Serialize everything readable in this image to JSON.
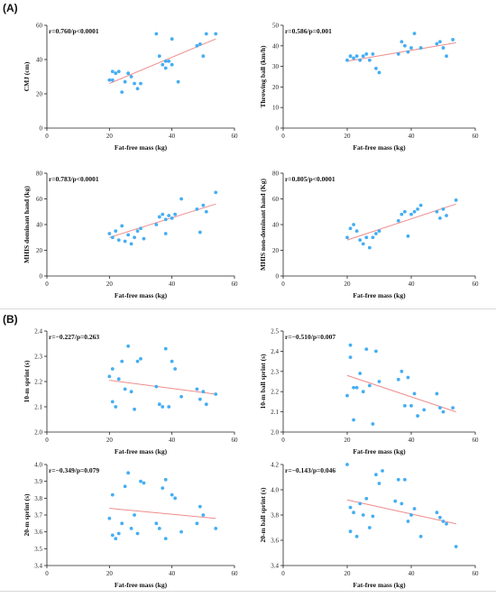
{
  "sections": [
    {
      "label": "(A)"
    },
    {
      "label": "(B)"
    }
  ],
  "colors": {
    "points": "#45aef2",
    "fit_line": "#ee8c8c",
    "axes": "#222222"
  },
  "chart_data": [
    {
      "type": "scatter",
      "title": "",
      "stat": "r=0.760/p<0.0001",
      "xlabel": "Fat-free mass (kg)",
      "ylabel": "CMJ (cm)",
      "xlim": [
        0,
        60
      ],
      "ylim": [
        0,
        60
      ],
      "xticks": [
        "0",
        "20",
        "40",
        "60"
      ],
      "yticks": [
        "0",
        "20",
        "40",
        "60"
      ],
      "fit": [
        [
          20,
          26
        ],
        [
          54,
          52
        ]
      ],
      "points": [
        [
          20,
          28
        ],
        [
          21,
          33
        ],
        [
          21,
          28
        ],
        [
          22,
          32
        ],
        [
          23,
          33
        ],
        [
          24,
          21
        ],
        [
          25,
          27
        ],
        [
          26,
          32
        ],
        [
          27,
          30
        ],
        [
          28,
          26
        ],
        [
          29,
          23
        ],
        [
          30,
          26
        ],
        [
          35,
          55
        ],
        [
          36,
          42
        ],
        [
          37,
          37
        ],
        [
          38,
          35
        ],
        [
          38,
          39
        ],
        [
          39,
          39
        ],
        [
          40,
          37
        ],
        [
          40,
          52
        ],
        [
          42,
          27
        ],
        [
          48,
          48
        ],
        [
          49,
          49
        ],
        [
          50,
          42
        ],
        [
          51,
          55
        ],
        [
          54,
          55
        ]
      ]
    },
    {
      "type": "scatter",
      "title": "",
      "stat": "r=0.586/p=0.001",
      "xlabel": "Fat-free mass (kg)",
      "ylabel": "Throwing ball (km/h)",
      "xlim": [
        0,
        60
      ],
      "ylim": [
        0,
        50
      ],
      "xticks": [
        "0",
        "20",
        "40",
        "60"
      ],
      "yticks": [
        "0",
        "10",
        "20",
        "30",
        "40",
        "50"
      ],
      "fit": [
        [
          20,
          32.5
        ],
        [
          54,
          41.5
        ]
      ],
      "points": [
        [
          20,
          33
        ],
        [
          21,
          35
        ],
        [
          22,
          34
        ],
        [
          23,
          35
        ],
        [
          24,
          33
        ],
        [
          25,
          35
        ],
        [
          26,
          36
        ],
        [
          27,
          33
        ],
        [
          28,
          36
        ],
        [
          29,
          29
        ],
        [
          30,
          27
        ],
        [
          36,
          36
        ],
        [
          37,
          42
        ],
        [
          38,
          40
        ],
        [
          39,
          37
        ],
        [
          40,
          39
        ],
        [
          41,
          46
        ],
        [
          43,
          39
        ],
        [
          48,
          41
        ],
        [
          49,
          42
        ],
        [
          50,
          39
        ],
        [
          51,
          35
        ],
        [
          53,
          43
        ]
      ]
    },
    {
      "type": "scatter",
      "title": "",
      "stat": "r=0.783/p<0.0001",
      "xlabel": "Fat-free mass (kg)",
      "ylabel": "MHIS dominant hand (kg)",
      "xlim": [
        0,
        60
      ],
      "ylim": [
        0,
        80
      ],
      "xticks": [
        "0",
        "20",
        "40",
        "60"
      ],
      "yticks": [
        "0",
        "20",
        "40",
        "60",
        "80"
      ],
      "fit": [
        [
          20,
          30
        ],
        [
          54,
          56
        ]
      ],
      "points": [
        [
          20,
          33
        ],
        [
          21,
          30
        ],
        [
          22,
          35
        ],
        [
          23,
          28
        ],
        [
          24,
          39
        ],
        [
          25,
          27
        ],
        [
          26,
          32
        ],
        [
          27,
          25
        ],
        [
          28,
          30
        ],
        [
          29,
          35
        ],
        [
          30,
          37
        ],
        [
          31,
          29
        ],
        [
          35,
          40
        ],
        [
          36,
          46
        ],
        [
          37,
          48
        ],
        [
          38,
          33
        ],
        [
          38,
          44
        ],
        [
          39,
          47
        ],
        [
          40,
          45
        ],
        [
          41,
          48
        ],
        [
          43,
          60
        ],
        [
          48,
          52
        ],
        [
          49,
          34
        ],
        [
          50,
          55
        ],
        [
          51,
          50
        ],
        [
          54,
          65
        ]
      ]
    },
    {
      "type": "scatter",
      "title": "",
      "stat": "r=0.805/p<0.0001",
      "xlabel": "Fat-free mass (kg)",
      "ylabel": "MHIS non-dominant hand (Kg)",
      "xlim": [
        0,
        60
      ],
      "ylim": [
        0,
        80
      ],
      "xticks": [
        "0",
        "20",
        "40",
        "60"
      ],
      "yticks": [
        "0",
        "20",
        "40",
        "60",
        "80"
      ],
      "fit": [
        [
          20,
          28
        ],
        [
          54,
          56
        ]
      ],
      "points": [
        [
          20,
          30
        ],
        [
          21,
          37
        ],
        [
          22,
          40
        ],
        [
          23,
          35
        ],
        [
          24,
          28
        ],
        [
          25,
          25
        ],
        [
          26,
          30
        ],
        [
          27,
          22
        ],
        [
          28,
          30
        ],
        [
          29,
          33
        ],
        [
          30,
          35
        ],
        [
          36,
          43
        ],
        [
          37,
          48
        ],
        [
          38,
          50
        ],
        [
          39,
          31
        ],
        [
          40,
          48
        ],
        [
          41,
          50
        ],
        [
          42,
          52
        ],
        [
          43,
          55
        ],
        [
          48,
          50
        ],
        [
          49,
          45
        ],
        [
          50,
          52
        ],
        [
          51,
          47
        ],
        [
          54,
          59
        ]
      ]
    },
    {
      "type": "scatter",
      "title": "",
      "stat": "r=−0.227/p=0.263",
      "xlabel": "Fat-free mass (kg)",
      "ylabel": "10-m sprint (s)",
      "xlim": [
        0,
        60
      ],
      "ylim": [
        2.0,
        2.4
      ],
      "xticks": [
        "0",
        "20",
        "40",
        "60"
      ],
      "yticks": [
        "2.0",
        "2.1",
        "2.2",
        "2.3",
        "2.4"
      ],
      "fit": [
        [
          20,
          2.205
        ],
        [
          54,
          2.15
        ]
      ],
      "points": [
        [
          20,
          2.22
        ],
        [
          21,
          2.25
        ],
        [
          21,
          2.12
        ],
        [
          22,
          2.1
        ],
        [
          23,
          2.21
        ],
        [
          24,
          2.28
        ],
        [
          25,
          2.17
        ],
        [
          26,
          2.34
        ],
        [
          27,
          2.16
        ],
        [
          28,
          2.09
        ],
        [
          29,
          2.28
        ],
        [
          30,
          2.29
        ],
        [
          35,
          2.18
        ],
        [
          36,
          2.11
        ],
        [
          37,
          2.1
        ],
        [
          38,
          2.33
        ],
        [
          39,
          2.1
        ],
        [
          40,
          2.28
        ],
        [
          41,
          2.25
        ],
        [
          43,
          2.14
        ],
        [
          48,
          2.17
        ],
        [
          49,
          2.13
        ],
        [
          50,
          2.16
        ],
        [
          51,
          2.11
        ],
        [
          54,
          2.15
        ]
      ]
    },
    {
      "type": "scatter",
      "title": "",
      "stat": "r=−0.510/p=0.007",
      "xlabel": "Fat-free mass (kg)",
      "ylabel": "10-m ball sprint (s)",
      "xlim": [
        0,
        60
      ],
      "ylim": [
        2.0,
        2.5
      ],
      "xticks": [
        "0",
        "20",
        "40",
        "60"
      ],
      "yticks": [
        "2.0",
        "2.1",
        "2.2",
        "2.3",
        "2.4",
        "2.5"
      ],
      "fit": [
        [
          20,
          2.28
        ],
        [
          54,
          2.1
        ]
      ],
      "points": [
        [
          20,
          2.18
        ],
        [
          21,
          2.43
        ],
        [
          21,
          2.37
        ],
        [
          22,
          2.22
        ],
        [
          22,
          2.06
        ],
        [
          23,
          2.22
        ],
        [
          24,
          2.29
        ],
        [
          25,
          2.2
        ],
        [
          26,
          2.41
        ],
        [
          27,
          2.23
        ],
        [
          28,
          2.04
        ],
        [
          29,
          2.4
        ],
        [
          30,
          2.25
        ],
        [
          36,
          2.26
        ],
        [
          37,
          2.3
        ],
        [
          38,
          2.13
        ],
        [
          39,
          2.27
        ],
        [
          40,
          2.13
        ],
        [
          41,
          2.19
        ],
        [
          42,
          2.08
        ],
        [
          44,
          2.11
        ],
        [
          48,
          2.19
        ],
        [
          49,
          2.12
        ],
        [
          50,
          2.1
        ],
        [
          53,
          2.12
        ]
      ]
    },
    {
      "type": "scatter",
      "title": "",
      "stat": "r=−0.349/p=0.079",
      "xlabel": "Fat-free mass (kg)",
      "ylabel": "20-m sprint (s)",
      "xlim": [
        0,
        60
      ],
      "ylim": [
        3.4,
        4.0
      ],
      "xticks": [
        "0",
        "20",
        "40",
        "60"
      ],
      "yticks": [
        "3.4",
        "3.5",
        "3.6",
        "3.7",
        "3.8",
        "3.9",
        "4.0"
      ],
      "fit": [
        [
          20,
          3.74
        ],
        [
          54,
          3.68
        ]
      ],
      "points": [
        [
          20,
          3.68
        ],
        [
          21,
          3.82
        ],
        [
          21,
          3.58
        ],
        [
          22,
          3.56
        ],
        [
          23,
          3.59
        ],
        [
          24,
          3.65
        ],
        [
          25,
          3.87
        ],
        [
          26,
          3.95
        ],
        [
          27,
          3.62
        ],
        [
          28,
          3.7
        ],
        [
          29,
          3.59
        ],
        [
          30,
          3.9
        ],
        [
          31,
          3.89
        ],
        [
          35,
          3.65
        ],
        [
          36,
          3.62
        ],
        [
          37,
          3.86
        ],
        [
          38,
          3.91
        ],
        [
          38,
          3.56
        ],
        [
          40,
          3.82
        ],
        [
          41,
          3.8
        ],
        [
          43,
          3.6
        ],
        [
          48,
          3.65
        ],
        [
          49,
          3.75
        ],
        [
          50,
          3.7
        ],
        [
          54,
          3.62
        ]
      ]
    },
    {
      "type": "scatter",
      "title": "",
      "stat": "r=−0.143/p=0.046",
      "xlabel": "Fat-free mass (kg)",
      "ylabel": "20-m ball sprint (s)",
      "xlim": [
        0,
        60
      ],
      "ylim": [
        3.4,
        4.2
      ],
      "xticks": [
        "0",
        "20",
        "40",
        "60"
      ],
      "yticks": [
        "3.4",
        "3.6",
        "3.8",
        "4.0",
        "4.2"
      ],
      "fit": [
        [
          20,
          3.92
        ],
        [
          54,
          3.73
        ]
      ],
      "points": [
        [
          20,
          4.2
        ],
        [
          21,
          3.86
        ],
        [
          21,
          3.67
        ],
        [
          22,
          3.82
        ],
        [
          23,
          3.63
        ],
        [
          24,
          3.89
        ],
        [
          25,
          3.8
        ],
        [
          26,
          3.93
        ],
        [
          27,
          3.7
        ],
        [
          28,
          3.79
        ],
        [
          29,
          4.12
        ],
        [
          30,
          4.05
        ],
        [
          31,
          4.15
        ],
        [
          35,
          3.91
        ],
        [
          36,
          4.08
        ],
        [
          37,
          3.89
        ],
        [
          38,
          4.08
        ],
        [
          39,
          3.75
        ],
        [
          40,
          3.8
        ],
        [
          41,
          3.85
        ],
        [
          43,
          3.63
        ],
        [
          48,
          3.82
        ],
        [
          49,
          3.78
        ],
        [
          50,
          3.75
        ],
        [
          51,
          3.73
        ],
        [
          54,
          3.55
        ]
      ]
    }
  ]
}
